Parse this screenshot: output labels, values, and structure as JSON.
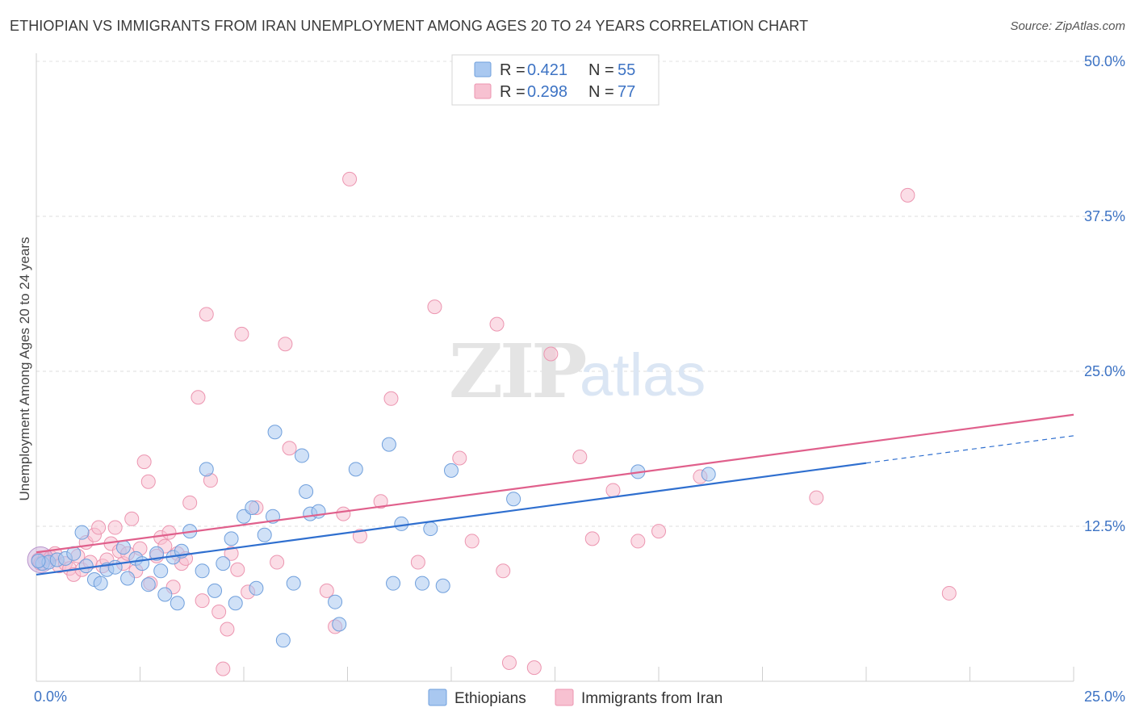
{
  "title": "ETHIOPIAN VS IMMIGRANTS FROM IRAN UNEMPLOYMENT AMONG AGES 20 TO 24 YEARS CORRELATION CHART",
  "source": "Source: ZipAtlas.com",
  "watermark": {
    "zip": "ZIP",
    "atlas": "atlas"
  },
  "legend": {
    "r_label": "R =",
    "n_label": "N =",
    "rows": [
      {
        "r": "0.421",
        "n": "55"
      },
      {
        "r": "0.298",
        "n": "77"
      }
    ]
  },
  "colors": {
    "blue_fill": "#a9c8f0",
    "blue_stroke": "#6f9fdc",
    "blue_line": "#2f6fcf",
    "pink_fill": "#f7c1d1",
    "pink_stroke": "#ec95b0",
    "pink_line": "#e0608c",
    "tick_text": "#3d73c4"
  },
  "chart_data": {
    "type": "scatter",
    "title": "ETHIOPIAN VS IMMIGRANTS FROM IRAN UNEMPLOYMENT AMONG AGES 20 TO 24 YEARS CORRELATION CHART",
    "xlabel": "",
    "ylabel": "Unemployment Among Ages 20 to 24 years",
    "xlim": [
      0,
      25
    ],
    "ylim": [
      0,
      50
    ],
    "x_tick_labels": [
      "0.0%",
      "25.0%"
    ],
    "y_ticks": [
      12.5,
      25.0,
      37.5,
      50.0
    ],
    "y_tick_labels": [
      "12.5%",
      "25.0%",
      "37.5%",
      "50.0%"
    ],
    "grid": true,
    "legend_position": "top-center",
    "series": [
      {
        "name": "Ethiopians",
        "color": "#a9c8f0",
        "points": [
          [
            0.15,
            9.5
          ],
          [
            0.3,
            9.6
          ],
          [
            0.5,
            9.8
          ],
          [
            0.7,
            9.9
          ],
          [
            0.9,
            10.3
          ],
          [
            1.1,
            12.0
          ],
          [
            1.2,
            9.3
          ],
          [
            1.4,
            8.2
          ],
          [
            1.55,
            7.9
          ],
          [
            1.7,
            9.0
          ],
          [
            1.9,
            9.2
          ],
          [
            2.1,
            10.8
          ],
          [
            2.2,
            8.3
          ],
          [
            2.4,
            9.9
          ],
          [
            2.55,
            9.5
          ],
          [
            2.7,
            7.8
          ],
          [
            2.9,
            10.3
          ],
          [
            3.0,
            8.9
          ],
          [
            3.1,
            7.0
          ],
          [
            3.3,
            10.0
          ],
          [
            3.4,
            6.3
          ],
          [
            3.5,
            10.5
          ],
          [
            3.7,
            12.1
          ],
          [
            4.0,
            8.9
          ],
          [
            4.1,
            17.1
          ],
          [
            4.3,
            7.3
          ],
          [
            4.5,
            9.5
          ],
          [
            4.7,
            11.5
          ],
          [
            4.8,
            6.3
          ],
          [
            5.0,
            13.3
          ],
          [
            5.2,
            14.0
          ],
          [
            5.3,
            7.5
          ],
          [
            5.5,
            11.8
          ],
          [
            5.7,
            13.3
          ],
          [
            5.75,
            20.1
          ],
          [
            5.95,
            3.3
          ],
          [
            6.2,
            7.9
          ],
          [
            6.4,
            18.2
          ],
          [
            6.5,
            15.3
          ],
          [
            6.6,
            13.5
          ],
          [
            6.8,
            13.7
          ],
          [
            7.2,
            6.4
          ],
          [
            7.3,
            4.6
          ],
          [
            7.7,
            17.1
          ],
          [
            8.5,
            19.1
          ],
          [
            8.6,
            7.9
          ],
          [
            8.8,
            12.7
          ],
          [
            9.3,
            7.9
          ],
          [
            9.5,
            12.3
          ],
          [
            9.8,
            7.7
          ],
          [
            10.0,
            17.0
          ],
          [
            11.5,
            14.7
          ],
          [
            14.5,
            16.9
          ],
          [
            16.2,
            16.7
          ],
          [
            0.05,
            9.7
          ]
        ]
      },
      {
        "name": "Immigrants from Iran",
        "color": "#f7c1d1",
        "points": [
          [
            0.05,
            9.8
          ],
          [
            0.1,
            9.5
          ],
          [
            0.2,
            9.9
          ],
          [
            0.35,
            10.0
          ],
          [
            0.45,
            10.3
          ],
          [
            0.55,
            9.3
          ],
          [
            0.7,
            9.5
          ],
          [
            0.8,
            9.1
          ],
          [
            0.9,
            8.6
          ],
          [
            1.0,
            10.1
          ],
          [
            1.1,
            9.0
          ],
          [
            1.2,
            11.2
          ],
          [
            1.3,
            9.6
          ],
          [
            1.4,
            11.8
          ],
          [
            1.5,
            12.4
          ],
          [
            1.6,
            9.3
          ],
          [
            1.7,
            9.8
          ],
          [
            1.8,
            11.1
          ],
          [
            1.9,
            12.4
          ],
          [
            2.0,
            10.5
          ],
          [
            2.1,
            9.5
          ],
          [
            2.2,
            10.3
          ],
          [
            2.3,
            13.1
          ],
          [
            2.4,
            8.9
          ],
          [
            2.5,
            10.7
          ],
          [
            2.6,
            17.7
          ],
          [
            2.7,
            16.1
          ],
          [
            2.75,
            7.9
          ],
          [
            2.9,
            10.1
          ],
          [
            3.0,
            11.6
          ],
          [
            3.1,
            10.9
          ],
          [
            3.2,
            12.0
          ],
          [
            3.3,
            7.6
          ],
          [
            3.4,
            10.3
          ],
          [
            3.5,
            9.5
          ],
          [
            3.6,
            9.9
          ],
          [
            3.7,
            14.4
          ],
          [
            3.9,
            22.9
          ],
          [
            4.0,
            6.5
          ],
          [
            4.1,
            29.6
          ],
          [
            4.2,
            16.2
          ],
          [
            4.4,
            5.6
          ],
          [
            4.5,
            1.0
          ],
          [
            4.6,
            4.2
          ],
          [
            4.7,
            10.3
          ],
          [
            4.85,
            9.0
          ],
          [
            4.95,
            28.0
          ],
          [
            5.1,
            7.2
          ],
          [
            5.3,
            14.0
          ],
          [
            5.8,
            9.6
          ],
          [
            6.0,
            27.2
          ],
          [
            6.1,
            18.8
          ],
          [
            7.0,
            7.3
          ],
          [
            7.2,
            4.4
          ],
          [
            7.4,
            13.5
          ],
          [
            7.55,
            40.5
          ],
          [
            7.8,
            11.7
          ],
          [
            8.3,
            14.5
          ],
          [
            8.55,
            22.8
          ],
          [
            9.2,
            9.6
          ],
          [
            9.6,
            30.2
          ],
          [
            10.2,
            18.0
          ],
          [
            10.5,
            11.3
          ],
          [
            11.1,
            28.8
          ],
          [
            11.25,
            8.9
          ],
          [
            11.4,
            1.5
          ],
          [
            12.0,
            1.1
          ],
          [
            12.4,
            26.4
          ],
          [
            13.1,
            18.1
          ],
          [
            13.4,
            11.5
          ],
          [
            13.9,
            15.4
          ],
          [
            14.5,
            11.3
          ],
          [
            15.0,
            12.1
          ],
          [
            16.0,
            16.5
          ],
          [
            18.8,
            14.8
          ],
          [
            21.0,
            39.2
          ],
          [
            22.0,
            7.1
          ]
        ]
      }
    ],
    "trendlines": [
      {
        "series": "Ethiopians",
        "x": [
          0,
          20
        ],
        "y": [
          8.6,
          17.6
        ],
        "dashed_extension": {
          "x": [
            20,
            25
          ],
          "y": [
            17.6,
            19.8
          ]
        }
      },
      {
        "series": "Immigrants from Iran",
        "x": [
          0,
          25
        ],
        "y": [
          10.4,
          21.5
        ]
      }
    ]
  },
  "bottom_legend": [
    "Ethiopians",
    "Immigrants from Iran"
  ]
}
